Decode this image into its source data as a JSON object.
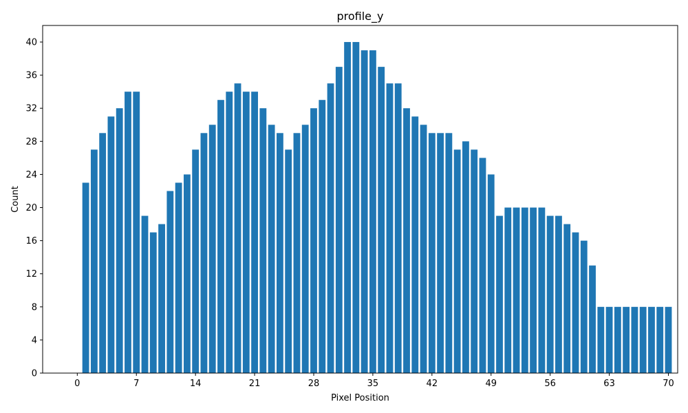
{
  "chart_data": {
    "type": "bar",
    "title": "profile_y",
    "xlabel": "Pixel Position",
    "ylabel": "Count",
    "x": [
      1,
      2,
      3,
      4,
      5,
      6,
      7,
      8,
      9,
      10,
      11,
      12,
      13,
      14,
      15,
      16,
      17,
      18,
      19,
      20,
      21,
      22,
      23,
      24,
      25,
      26,
      27,
      28,
      29,
      30,
      31,
      32,
      33,
      34,
      35,
      36,
      37,
      38,
      39,
      40,
      41,
      42,
      43,
      44,
      45,
      46,
      47,
      48,
      49,
      50,
      51,
      52,
      53,
      54,
      55,
      56,
      57,
      58,
      59,
      60,
      61,
      62,
      63,
      64,
      65,
      66,
      67,
      68,
      69,
      70
    ],
    "values": [
      23,
      27,
      29,
      31,
      32,
      34,
      34,
      19,
      17,
      18,
      22,
      23,
      24,
      27,
      29,
      30,
      33,
      34,
      35,
      34,
      34,
      32,
      30,
      29,
      27,
      29,
      30,
      32,
      33,
      35,
      37,
      40,
      40,
      39,
      39,
      37,
      35,
      35,
      32,
      31,
      30,
      29,
      29,
      29,
      27,
      28,
      27,
      26,
      24,
      19,
      20,
      20,
      20,
      20,
      20,
      19,
      19,
      18,
      17,
      16,
      13,
      8,
      8,
      8,
      8,
      8,
      8,
      8,
      8,
      8
    ],
    "xlim": [
      -4.1,
      71.1
    ],
    "ylim": [
      0,
      42
    ],
    "xticks": [
      0,
      7,
      14,
      21,
      28,
      35,
      42,
      49,
      56,
      63,
      70
    ],
    "yticks": [
      0,
      4,
      8,
      12,
      16,
      20,
      24,
      28,
      32,
      36,
      40
    ],
    "bar_color": "#1f77b4",
    "grid": false,
    "legend": "none"
  }
}
